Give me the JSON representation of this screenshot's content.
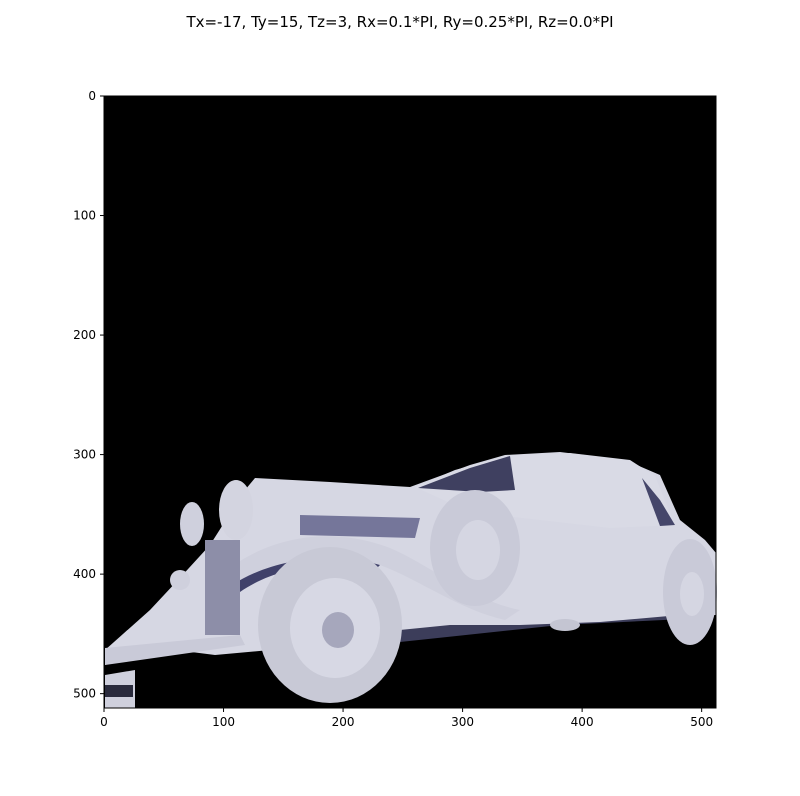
{
  "chart_data": {
    "type": "image",
    "title": "Tx=-17, Ty=15, Tz=3, Rx=0.1*PI, Ry=0.25*PI, Rz=0.0*PI",
    "xlabel": "",
    "ylabel": "",
    "xlim": [
      0,
      512
    ],
    "ylim": [
      512,
      0
    ],
    "x_ticks": [
      0,
      100,
      200,
      300,
      400,
      500
    ],
    "y_ticks": [
      0,
      100,
      200,
      300,
      400,
      500
    ],
    "grid": false,
    "image": {
      "subject": "vintage convertible car",
      "background_color": "#000000",
      "body_color": "#d6d7e3",
      "shadow_color": "#3c3d5a"
    }
  }
}
